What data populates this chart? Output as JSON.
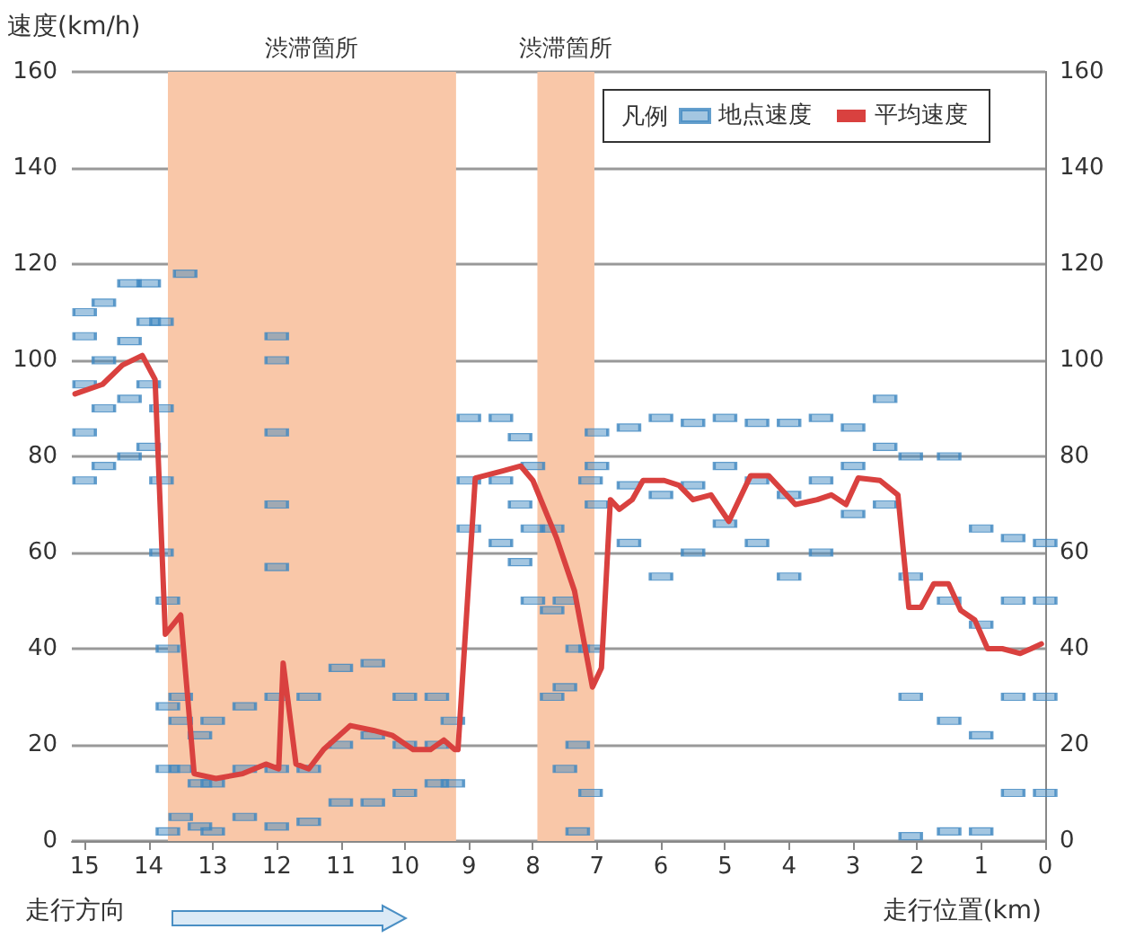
{
  "chart_data": {
    "type": "scatter",
    "ylabel": "速度(km/h)",
    "xlabel": "走行位置(km)",
    "legend_title": "凡例",
    "legend": "top right",
    "grid": "y",
    "xlim": [
      15.2,
      0
    ],
    "xticks": [
      15,
      14,
      13,
      12,
      11,
      10,
      9,
      8,
      7,
      6,
      5,
      4,
      3,
      2,
      1,
      0
    ],
    "ylim": [
      0,
      160
    ],
    "yticks": [
      0,
      20,
      40,
      60,
      80,
      100,
      120,
      140,
      160
    ],
    "y2lim": [
      0,
      160
    ],
    "y2ticks": [
      0,
      20,
      40,
      60,
      80,
      100,
      120,
      140,
      160
    ],
    "bands": [
      {
        "axis": "x",
        "from": 13.7,
        "to": 9.2,
        "label": "渋滞箇所",
        "color": "#f9c7a8"
      },
      {
        "axis": "x",
        "from": 7.93,
        "to": 7.04,
        "label": "渋滞箇所",
        "color": "#f9c7a8"
      }
    ],
    "annotations": [
      "走行方向"
    ],
    "series": [
      {
        "name": "地点速度",
        "marker": "square",
        "color": "#3f87c0",
        "x": [
          15,
          15,
          15,
          15,
          15,
          14.7,
          14.7,
          14.7,
          14.7,
          14.3,
          14.3,
          14.3,
          14.3,
          14,
          14,
          14,
          14,
          13.8,
          13.8,
          13.8,
          13.8,
          13.7,
          13.7,
          13.7,
          13.7,
          13.7,
          13.5,
          13.5,
          13.5,
          13.5,
          13.43,
          13.2,
          13.2,
          13.2,
          13,
          13,
          13,
          12.5,
          12.5,
          12.5,
          12,
          12,
          12,
          12,
          12,
          12,
          12,
          12,
          11.5,
          11.5,
          11.5,
          11,
          11,
          11,
          10.5,
          10.5,
          10.5,
          10,
          10,
          10,
          9.5,
          9.5,
          9.5,
          9.25,
          9.25,
          9,
          9,
          9,
          8.5,
          8.5,
          8.5,
          8.2,
          8.2,
          8.2,
          8,
          8,
          8,
          7.7,
          7.7,
          7.7,
          7.5,
          7.5,
          7.5,
          7.3,
          7.3,
          7.3,
          7.1,
          7.1,
          7.1,
          7,
          7,
          7,
          6.5,
          6.5,
          6.5,
          6,
          6,
          6,
          5.5,
          5.5,
          5.5,
          5,
          5,
          5,
          4.5,
          4.5,
          4.5,
          4,
          4,
          4,
          3.5,
          3.5,
          3.5,
          3,
          3,
          3,
          2.5,
          2.5,
          2.5,
          2.1,
          2.1,
          2.1,
          2.1,
          1.5,
          1.5,
          1.5,
          1.5,
          1,
          1,
          1,
          1,
          0.5,
          0.5,
          0.5,
          0.5,
          0,
          0,
          0,
          0
        ],
        "values": [
          75,
          85,
          95,
          105,
          110,
          78,
          90,
          100,
          112,
          80,
          92,
          104,
          116,
          82,
          95,
          108,
          116,
          60,
          75,
          90,
          108,
          2,
          15,
          28,
          40,
          50,
          5,
          15,
          25,
          30,
          118,
          3,
          12,
          22,
          2,
          12,
          25,
          5,
          15,
          28,
          3,
          15,
          30,
          57,
          70,
          85,
          100,
          105,
          4,
          15,
          30,
          8,
          20,
          36,
          8,
          22,
          37,
          10,
          20,
          30,
          12,
          20,
          30,
          12,
          25,
          65,
          75,
          88,
          62,
          75,
          88,
          58,
          70,
          84,
          50,
          65,
          78,
          30,
          48,
          65,
          15,
          32,
          50,
          2,
          20,
          40,
          10,
          40,
          75,
          70,
          78,
          85,
          62,
          74,
          86,
          55,
          72,
          88,
          60,
          74,
          87,
          66,
          78,
          88,
          62,
          75,
          87,
          55,
          72,
          87,
          60,
          75,
          88,
          68,
          78,
          86,
          70,
          82,
          92,
          1,
          30,
          55,
          80,
          2,
          25,
          50,
          80,
          2,
          22,
          45,
          65,
          10,
          30,
          50,
          63,
          10,
          30,
          50,
          62
        ]
      },
      {
        "name": "平均速度",
        "type": "line",
        "marker": "none",
        "line_style": "solid",
        "color": "#d9413f",
        "x": [
          15.15,
          14.72,
          14.41,
          14.1,
          13.9,
          13.74,
          13.5,
          13.29,
          12.95,
          12.53,
          12.17,
          11.97,
          11.9,
          11.7,
          11.5,
          11.27,
          10.85,
          10.49,
          10.2,
          9.87,
          9.6,
          9.39,
          9.22,
          9.17,
          8.9,
          8.47,
          8.19,
          8,
          7.63,
          7.35,
          7.07,
          6.93,
          6.79,
          6.65,
          6.45,
          6.28,
          5.95,
          5.72,
          5.5,
          5.22,
          4.94,
          4.6,
          4.32,
          3.9,
          3.56,
          3.34,
          3.11,
          2.92,
          2.58,
          2.3,
          2.13,
          1.94,
          1.74,
          1.51,
          1.32,
          1.1,
          0.9,
          0.67,
          0.39,
          0.22,
          0.06
        ],
        "values": [
          93,
          95,
          99,
          101,
          96,
          43,
          47,
          14,
          13,
          14,
          16,
          15,
          37,
          16,
          15,
          19,
          24,
          23,
          22,
          19,
          19,
          21,
          19,
          19,
          75.5,
          77,
          78,
          75,
          63,
          52,
          32,
          36,
          71,
          69,
          71,
          75,
          75,
          74,
          71,
          72,
          66.5,
          76,
          76,
          70,
          71,
          72,
          70,
          75.5,
          75,
          72,
          48.6,
          48.6,
          53.5,
          53.5,
          48,
          46,
          40,
          40,
          39,
          40,
          41
        ]
      }
    ]
  }
}
